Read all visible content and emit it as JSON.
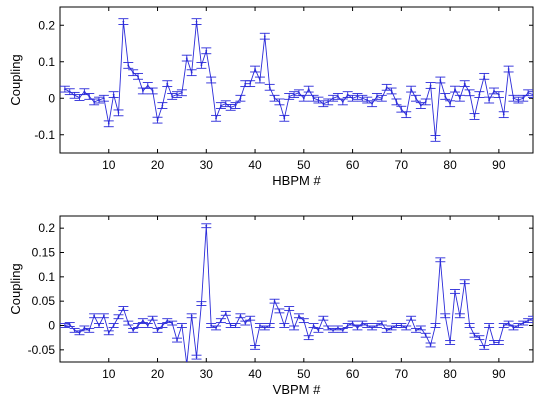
{
  "chart_data": [
    {
      "type": "line",
      "xlabel": "HBPM #",
      "ylabel": "Coupling",
      "xlim": [
        0,
        97
      ],
      "ylim": [
        -0.15,
        0.25
      ],
      "xticks": [
        10,
        20,
        30,
        40,
        50,
        60,
        70,
        80,
        90
      ],
      "yticks": [
        -0.1,
        0,
        0.1,
        0.2
      ],
      "ytick_labels": [
        "-0.1",
        "0",
        "0.1",
        "0.2"
      ],
      "grid": false,
      "series_color": "#2b2bd9",
      "errorbar_half_width": 0.008,
      "x": [
        1,
        2,
        3,
        4,
        5,
        6,
        7,
        8,
        9,
        10,
        11,
        12,
        13,
        14,
        15,
        16,
        17,
        18,
        19,
        20,
        21,
        22,
        23,
        24,
        25,
        26,
        27,
        28,
        29,
        30,
        31,
        32,
        33,
        34,
        35,
        36,
        37,
        38,
        39,
        40,
        41,
        42,
        43,
        44,
        45,
        46,
        47,
        48,
        49,
        50,
        51,
        52,
        53,
        54,
        55,
        56,
        57,
        58,
        59,
        60,
        61,
        62,
        63,
        64,
        65,
        66,
        67,
        68,
        69,
        70,
        71,
        72,
        73,
        74,
        75,
        76,
        77,
        78,
        79,
        80,
        81,
        82,
        83,
        84,
        85,
        86,
        87,
        88,
        89,
        90,
        91,
        92,
        93,
        94,
        95,
        96,
        97
      ],
      "values": [
        0.025,
        0.018,
        0.008,
        0.002,
        0.018,
        0.005,
        -0.01,
        -0.005,
        0.0,
        -0.07,
        0.01,
        -0.04,
        0.21,
        0.09,
        0.07,
        0.06,
        0.02,
        0.035,
        0.02,
        -0.06,
        -0.02,
        0.04,
        0.005,
        0.01,
        0.015,
        0.11,
        0.07,
        0.21,
        0.09,
        0.13,
        0.05,
        -0.055,
        -0.02,
        -0.015,
        -0.025,
        -0.02,
        0.0,
        0.04,
        0.04,
        0.08,
        0.05,
        0.17,
        0.03,
        0.0,
        -0.01,
        -0.055,
        0.005,
        0.01,
        0.015,
        0.0,
        0.025,
        0.0,
        -0.005,
        -0.015,
        -0.01,
        0.0,
        0.005,
        -0.01,
        0.01,
        0.0,
        0.005,
        0.0,
        -0.005,
        -0.015,
        0.005,
        0.0,
        0.03,
        0.02,
        -0.01,
        -0.03,
        -0.045,
        0.025,
        0.0,
        -0.02,
        -0.01,
        0.035,
        -0.11,
        0.05,
        0.005,
        -0.015,
        0.025,
        0.0,
        0.04,
        0.015,
        -0.05,
        0.01,
        0.06,
        -0.005,
        0.02,
        0.01,
        -0.045,
        0.08,
        0.0,
        -0.005,
        0.0,
        0.015,
        0.01
      ]
    },
    {
      "type": "line",
      "xlabel": "VBPM #",
      "ylabel": "Coupling",
      "xlim": [
        0,
        97
      ],
      "ylim": [
        -0.075,
        0.225
      ],
      "xticks": [
        10,
        20,
        30,
        40,
        50,
        60,
        70,
        80,
        90
      ],
      "yticks": [
        -0.05,
        0,
        0.05,
        0.1,
        0.15,
        0.2
      ],
      "ytick_labels": [
        "-0.05",
        "0",
        "0.05",
        "0.1",
        "0.15",
        "0.2"
      ],
      "grid": false,
      "series_color": "#2b2bd9",
      "errorbar_half_width": 0.004,
      "x": [
        1,
        2,
        3,
        4,
        5,
        6,
        7,
        8,
        9,
        10,
        11,
        12,
        13,
        14,
        15,
        16,
        17,
        18,
        19,
        20,
        21,
        22,
        23,
        24,
        25,
        26,
        27,
        28,
        29,
        30,
        31,
        32,
        33,
        34,
        35,
        36,
        37,
        38,
        39,
        40,
        41,
        42,
        43,
        44,
        45,
        46,
        47,
        48,
        49,
        50,
        51,
        52,
        53,
        54,
        55,
        56,
        57,
        58,
        59,
        60,
        61,
        62,
        63,
        64,
        65,
        66,
        67,
        68,
        69,
        70,
        71,
        72,
        73,
        74,
        75,
        76,
        77,
        78,
        79,
        80,
        81,
        82,
        83,
        84,
        85,
        86,
        87,
        88,
        89,
        90,
        91,
        92,
        93,
        94,
        95,
        96,
        97
      ],
      "values": [
        0.0,
        0.002,
        -0.01,
        -0.015,
        -0.005,
        -0.01,
        0.02,
        0.0,
        0.02,
        -0.015,
        0.0,
        0.018,
        0.035,
        0.005,
        -0.01,
        0.0,
        0.01,
        0.0,
        0.015,
        -0.01,
        0.0,
        0.01,
        0.005,
        -0.03,
        0.0,
        -0.08,
        0.02,
        -0.065,
        0.045,
        0.205,
        0.0,
        -0.005,
        0.01,
        0.025,
        0.0,
        0.0,
        0.02,
        0.005,
        0.015,
        -0.045,
        0.0,
        -0.005,
        0.0,
        0.05,
        0.03,
        0.0,
        0.035,
        -0.005,
        0.02,
        0.01,
        -0.025,
        0.0,
        -0.01,
        0.015,
        -0.005,
        -0.01,
        -0.005,
        -0.01,
        0.0,
        0.005,
        -0.005,
        0.005,
        0.0,
        -0.005,
        0.0,
        0.005,
        -0.01,
        -0.005,
        0.0,
        0.0,
        -0.005,
        0.015,
        -0.01,
        -0.005,
        -0.02,
        -0.04,
        0.0,
        0.135,
        0.02,
        -0.035,
        0.07,
        0.02,
        0.09,
        0.0,
        -0.02,
        -0.025,
        -0.045,
        0.0,
        -0.035,
        -0.035,
        0.0,
        0.005,
        -0.005,
        0.0,
        0.005,
        0.01,
        0.015
      ]
    }
  ]
}
